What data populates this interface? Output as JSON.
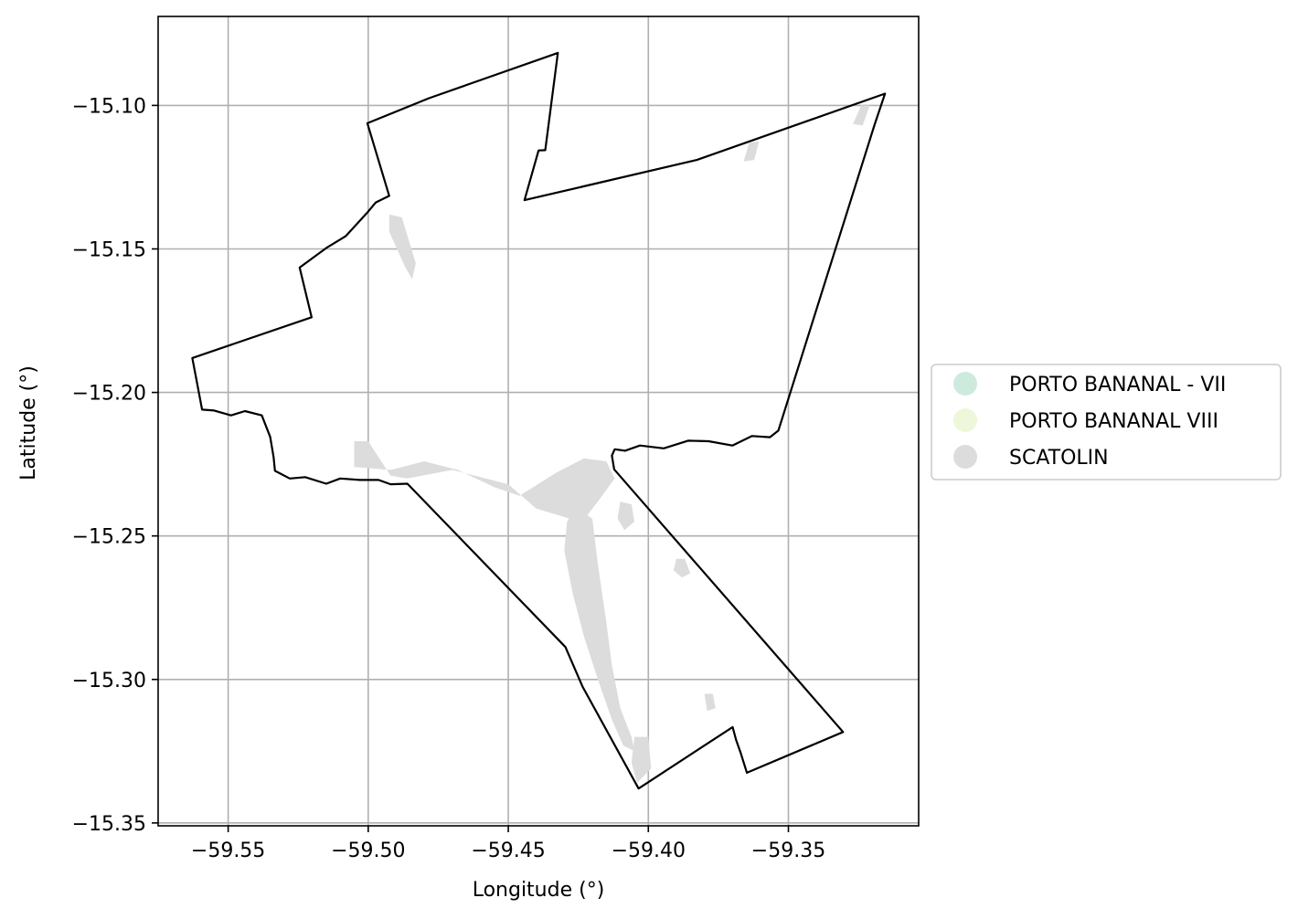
{
  "chart_data": {
    "type": "map",
    "xlabel": "Longitude (°)",
    "ylabel": "Latitude (°)",
    "xlim": [
      -59.575,
      -59.3035
    ],
    "ylim": [
      -15.351,
      -15.069
    ],
    "grid": true,
    "legend_placement": "center-left outside plot",
    "x_ticks": [
      {
        "value": -59.55,
        "label": "−59.55"
      },
      {
        "value": -59.5,
        "label": "−59.50"
      },
      {
        "value": -59.45,
        "label": "−59.45"
      },
      {
        "value": -59.4,
        "label": "−59.40"
      },
      {
        "value": -59.35,
        "label": "−59.35"
      }
    ],
    "y_ticks": [
      {
        "value": -15.1,
        "label": "−15.10"
      },
      {
        "value": -15.15,
        "label": "−15.15"
      },
      {
        "value": -15.2,
        "label": "−15.20"
      },
      {
        "value": -15.25,
        "label": "−15.25"
      },
      {
        "value": -15.3,
        "label": "−15.30"
      },
      {
        "value": -15.35,
        "label": "−15.35"
      }
    ],
    "legend": [
      {
        "label": "PORTO BANANAL - VII",
        "color": "#cdeadd"
      },
      {
        "label": "PORTO BANANAL VIII",
        "color": "#eef7d9"
      },
      {
        "label": "SCATOLIN",
        "color": "#dcdcdc"
      }
    ],
    "boundary": {
      "stroke": "#000000",
      "points": [
        [
          -59.5003,
          -15.1062
        ],
        [
          -59.4783,
          -15.0975
        ],
        [
          -59.4323,
          -15.0817
        ],
        [
          -59.4368,
          -15.1156
        ],
        [
          -59.4392,
          -15.1157
        ],
        [
          -59.4442,
          -15.133
        ],
        [
          -59.3827,
          -15.119
        ],
        [
          -59.3155,
          -15.0959
        ],
        [
          -59.3192,
          -15.1066
        ],
        [
          -59.3536,
          -15.2133
        ],
        [
          -59.3566,
          -15.2156
        ],
        [
          -59.363,
          -15.2152
        ],
        [
          -59.37,
          -15.2185
        ],
        [
          -59.3785,
          -15.217
        ],
        [
          -59.3858,
          -15.2168
        ],
        [
          -59.3945,
          -15.2195
        ],
        [
          -59.403,
          -15.2185
        ],
        [
          -59.4083,
          -15.2203
        ],
        [
          -59.412,
          -15.2198
        ],
        [
          -59.413,
          -15.222
        ],
        [
          -59.4122,
          -15.2268
        ],
        [
          -59.3305,
          -15.3183
        ],
        [
          -59.3648,
          -15.3325
        ],
        [
          -59.3671,
          -15.3254
        ],
        [
          -59.3687,
          -15.321
        ],
        [
          -59.3699,
          -15.3166
        ],
        [
          -59.4035,
          -15.338
        ],
        [
          -59.4235,
          -15.3025
        ],
        [
          -59.4288,
          -15.2905
        ],
        [
          -59.4296,
          -15.2887
        ],
        [
          -59.486,
          -15.2318
        ],
        [
          -59.492,
          -15.232
        ],
        [
          -59.4963,
          -15.2305
        ],
        [
          -59.503,
          -15.2305
        ],
        [
          -59.51,
          -15.23
        ],
        [
          -59.515,
          -15.2318
        ],
        [
          -59.5225,
          -15.2295
        ],
        [
          -59.528,
          -15.23
        ],
        [
          -59.5333,
          -15.2273
        ],
        [
          -59.5338,
          -15.2225
        ],
        [
          -59.535,
          -15.2155
        ],
        [
          -59.538,
          -15.208
        ],
        [
          -59.544,
          -15.2065
        ],
        [
          -59.549,
          -15.208
        ],
        [
          -59.555,
          -15.2063
        ],
        [
          -59.5593,
          -15.206
        ],
        [
          -59.5628,
          -15.188
        ],
        [
          -59.5202,
          -15.1738
        ],
        [
          -59.5245,
          -15.1565
        ],
        [
          -59.5147,
          -15.1495
        ],
        [
          -59.508,
          -15.1455
        ],
        [
          -59.5,
          -15.137
        ],
        [
          -59.4973,
          -15.1338
        ],
        [
          -59.4925,
          -15.1315
        ],
        [
          -59.5003,
          -15.1062
        ]
      ]
    },
    "scatolin_patches": [
      {
        "points": [
          [
            -59.4925,
            -15.138
          ],
          [
            -59.488,
            -15.139
          ],
          [
            -59.483,
            -15.155
          ],
          [
            -59.4843,
            -15.1605
          ],
          [
            -59.487,
            -15.156
          ],
          [
            -59.4925,
            -15.144
          ]
        ]
      },
      {
        "points": [
          [
            -59.364,
            -15.113
          ],
          [
            -59.3605,
            -15.1125
          ],
          [
            -59.3622,
            -15.119
          ],
          [
            -59.366,
            -15.1195
          ]
        ]
      },
      {
        "points": [
          [
            -59.324,
            -15.1
          ],
          [
            -59.321,
            -15.1
          ],
          [
            -59.3235,
            -15.107
          ],
          [
            -59.327,
            -15.1065
          ]
        ]
      },
      {
        "points": [
          [
            -59.505,
            -15.217
          ],
          [
            -59.5,
            -15.217
          ],
          [
            -59.492,
            -15.229
          ],
          [
            -59.486,
            -15.23
          ],
          [
            -59.47,
            -15.227
          ],
          [
            -59.45,
            -15.232
          ],
          [
            -59.44,
            -15.2405
          ],
          [
            -59.428,
            -15.244
          ],
          [
            -59.422,
            -15.243
          ],
          [
            -59.418,
            -15.238
          ],
          [
            -59.412,
            -15.23
          ],
          [
            -59.415,
            -15.224
          ],
          [
            -59.423,
            -15.223
          ],
          [
            -59.433,
            -15.228
          ],
          [
            -59.446,
            -15.236
          ],
          [
            -59.455,
            -15.233
          ],
          [
            -59.468,
            -15.227
          ],
          [
            -59.48,
            -15.224
          ],
          [
            -59.492,
            -15.227
          ],
          [
            -59.505,
            -15.226
          ]
        ]
      },
      {
        "points": [
          [
            -59.426,
            -15.24
          ],
          [
            -59.42,
            -15.244
          ],
          [
            -59.418,
            -15.26
          ],
          [
            -59.415,
            -15.28
          ],
          [
            -59.413,
            -15.295
          ],
          [
            -59.41,
            -15.31
          ],
          [
            -59.406,
            -15.32
          ],
          [
            -59.405,
            -15.325
          ],
          [
            -59.409,
            -15.323
          ],
          [
            -59.413,
            -15.314
          ],
          [
            -59.418,
            -15.3
          ],
          [
            -59.423,
            -15.285
          ],
          [
            -59.427,
            -15.27
          ],
          [
            -59.43,
            -15.255
          ],
          [
            -59.429,
            -15.245
          ]
        ]
      },
      {
        "points": [
          [
            -59.41,
            -15.238
          ],
          [
            -59.406,
            -15.239
          ],
          [
            -59.405,
            -15.245
          ],
          [
            -59.4085,
            -15.248
          ],
          [
            -59.411,
            -15.244
          ]
        ]
      },
      {
        "points": [
          [
            -59.39,
            -15.258
          ],
          [
            -59.387,
            -15.258
          ],
          [
            -59.385,
            -15.263
          ],
          [
            -59.388,
            -15.2645
          ],
          [
            -59.391,
            -15.262
          ]
        ]
      },
      {
        "points": [
          [
            -59.38,
            -15.305
          ],
          [
            -59.377,
            -15.305
          ],
          [
            -59.376,
            -15.31
          ],
          [
            -59.379,
            -15.311
          ]
        ]
      },
      {
        "points": [
          [
            -59.405,
            -15.32
          ],
          [
            -59.4,
            -15.32
          ],
          [
            -59.399,
            -15.331
          ],
          [
            -59.404,
            -15.336
          ],
          [
            -59.406,
            -15.329
          ]
        ]
      }
    ]
  }
}
